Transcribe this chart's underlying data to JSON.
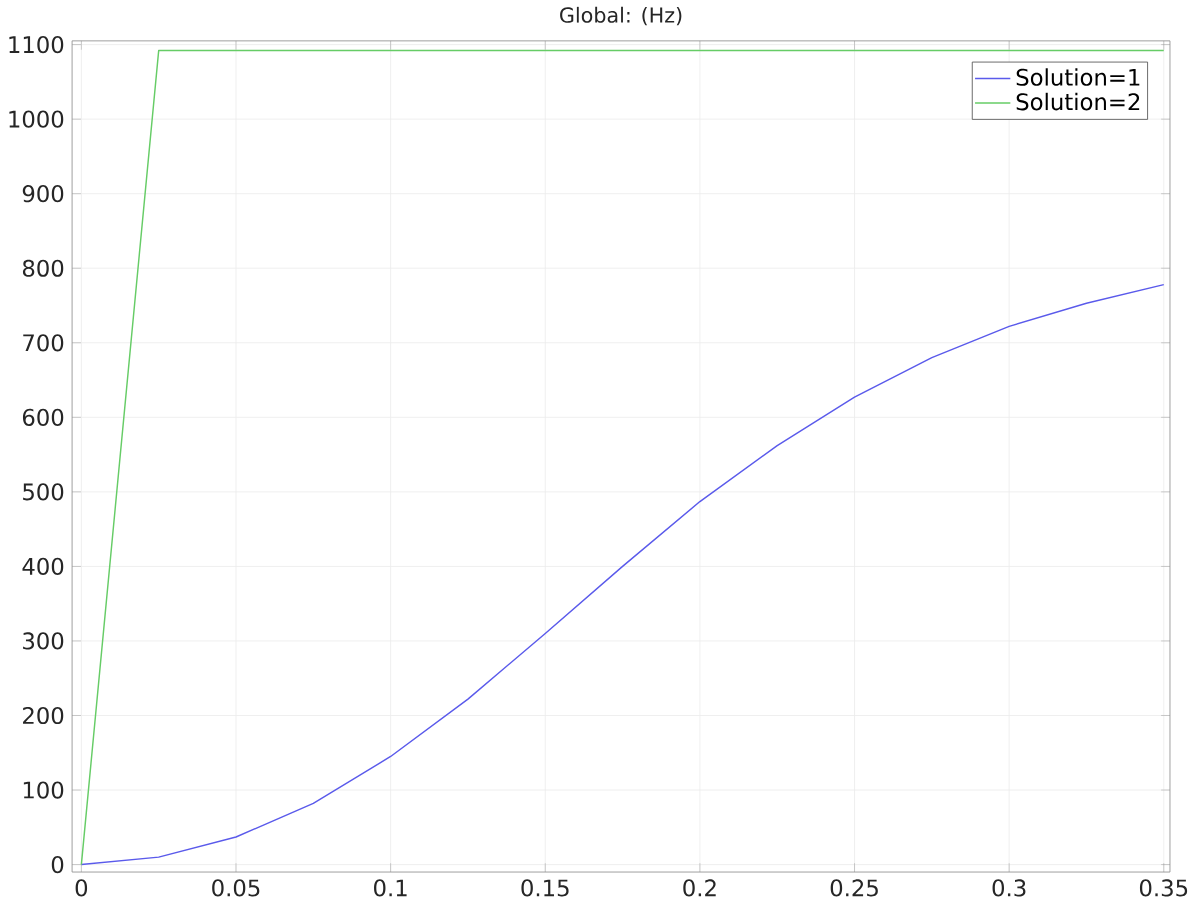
{
  "chart_data": {
    "type": "line",
    "title": "Global:  (Hz)",
    "x": [
      0,
      0.025,
      0.05,
      0.075,
      0.1,
      0.125,
      0.15,
      0.175,
      0.2,
      0.225,
      0.25,
      0.275,
      0.3,
      0.325,
      0.35
    ],
    "series": [
      {
        "name": "Solution=1",
        "color": "#5a5aeb",
        "values": [
          0,
          10,
          37,
          82,
          145,
          222,
          310,
          400,
          487,
          562,
          627,
          680,
          722,
          753,
          778
        ]
      },
      {
        "name": "Solution=2",
        "color": "#66cc66",
        "values": [
          0,
          1092,
          1092,
          1092,
          1092,
          1092,
          1092,
          1092,
          1092,
          1092,
          1092,
          1092,
          1092,
          1092,
          1092
        ]
      }
    ],
    "xlim": [
      -0.003,
      0.352
    ],
    "ylim": [
      -10,
      1105
    ],
    "xticks": [
      0,
      0.05,
      0.1,
      0.15,
      0.2,
      0.25,
      0.3,
      0.35
    ],
    "yticks": [
      0,
      100,
      200,
      300,
      400,
      500,
      600,
      700,
      800,
      900,
      1000,
      1100
    ],
    "grid": true,
    "legend": "top right",
    "marker": "none",
    "line_style": "solid"
  }
}
